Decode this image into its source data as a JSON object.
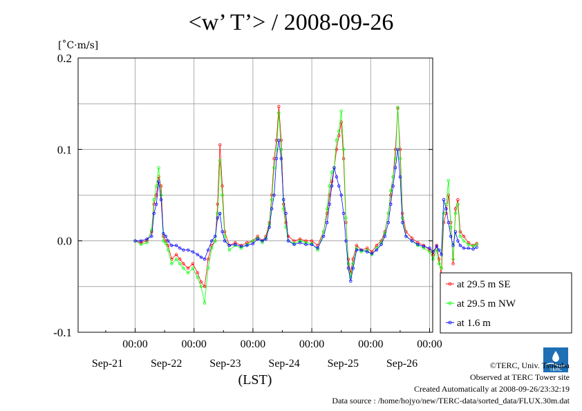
{
  "chart_data": {
    "type": "line",
    "title": "<w’ T’> / 2008-09-26",
    "ylabel": "[˚C·m/s]",
    "xlabel": "(LST)",
    "ylim": [
      -0.1,
      0.2
    ],
    "yticks": [
      "-0.1",
      "0.0",
      "0.1",
      "0.2"
    ],
    "xlim": [
      0,
      6
    ],
    "xticks": [
      {
        "time": "00:00",
        "date": "Sep-21"
      },
      {
        "time": "00:00",
        "date": "Sep-22"
      },
      {
        "time": "00:00",
        "date": "Sep-23"
      },
      {
        "time": "00:00",
        "date": "Sep-24"
      },
      {
        "time": "00:00",
        "date": "Sep-25"
      },
      {
        "time": "00:00",
        "date": "Sep-26"
      }
    ],
    "grid": true,
    "legend_position": "right",
    "series": [
      {
        "name": "at 29.5 m SE",
        "color": "#ff0000",
        "points": [
          [
            0,
            0.0
          ],
          [
            0.1,
            -0.002
          ],
          [
            0.2,
            0.0
          ],
          [
            0.28,
            0.01
          ],
          [
            0.32,
            0.04
          ],
          [
            0.36,
            0.05
          ],
          [
            0.4,
            0.07
          ],
          [
            0.44,
            0.06
          ],
          [
            0.48,
            0.005
          ],
          [
            0.52,
            0.0
          ],
          [
            0.56,
            -0.005
          ],
          [
            0.62,
            -0.02
          ],
          [
            0.7,
            -0.015
          ],
          [
            0.76,
            -0.02
          ],
          [
            0.82,
            -0.025
          ],
          [
            0.9,
            -0.03
          ],
          [
            0.98,
            -0.025
          ],
          [
            1.06,
            -0.035
          ],
          [
            1.12,
            -0.045
          ],
          [
            1.18,
            -0.05
          ],
          [
            1.24,
            -0.02
          ],
          [
            1.3,
            -0.005
          ],
          [
            1.36,
            0.0
          ],
          [
            1.4,
            0.04
          ],
          [
            1.44,
            0.105
          ],
          [
            1.48,
            0.06
          ],
          [
            1.52,
            0.01
          ],
          [
            1.6,
            -0.005
          ],
          [
            1.7,
            -0.002
          ],
          [
            1.8,
            -0.005
          ],
          [
            1.9,
            -0.002
          ],
          [
            2.0,
            0.0
          ],
          [
            2.08,
            0.005
          ],
          [
            2.16,
            0.0
          ],
          [
            2.22,
            0.005
          ],
          [
            2.28,
            0.02
          ],
          [
            2.32,
            0.05
          ],
          [
            2.36,
            0.09
          ],
          [
            2.4,
            0.11
          ],
          [
            2.44,
            0.147
          ],
          [
            2.48,
            0.11
          ],
          [
            2.52,
            0.04
          ],
          [
            2.56,
            0.02
          ],
          [
            2.6,
            0.005
          ],
          [
            2.7,
            0.0
          ],
          [
            2.8,
            0.002
          ],
          [
            2.9,
            0.0
          ],
          [
            3.0,
            0.0
          ],
          [
            3.1,
            -0.005
          ],
          [
            3.2,
            0.01
          ],
          [
            3.26,
            0.03
          ],
          [
            3.3,
            0.05
          ],
          [
            3.34,
            0.065
          ],
          [
            3.38,
            0.08
          ],
          [
            3.42,
            0.1
          ],
          [
            3.46,
            0.115
          ],
          [
            3.5,
            0.13
          ],
          [
            3.54,
            0.09
          ],
          [
            3.58,
            0.02
          ],
          [
            3.62,
            -0.02
          ],
          [
            3.66,
            -0.035
          ],
          [
            3.7,
            -0.02
          ],
          [
            3.76,
            -0.005
          ],
          [
            3.84,
            -0.01
          ],
          [
            3.94,
            -0.008
          ],
          [
            4.02,
            -0.012
          ],
          [
            4.1,
            -0.005
          ],
          [
            4.18,
            0.0
          ],
          [
            4.24,
            0.01
          ],
          [
            4.3,
            0.03
          ],
          [
            4.34,
            0.05
          ],
          [
            4.38,
            0.07
          ],
          [
            4.42,
            0.1
          ],
          [
            4.46,
            0.145
          ],
          [
            4.5,
            0.1
          ],
          [
            4.54,
            0.03
          ],
          [
            4.6,
            0.01
          ],
          [
            4.7,
            0.003
          ],
          [
            4.8,
            -0.002
          ],
          [
            4.9,
            -0.005
          ],
          [
            5.0,
            -0.01
          ],
          [
            5.06,
            -0.015
          ],
          [
            5.12,
            -0.005
          ],
          [
            5.16,
            -0.02
          ],
          [
            5.2,
            -0.038
          ],
          [
            5.24,
            0.02
          ],
          [
            5.28,
            0.03
          ],
          [
            5.32,
            0.05
          ],
          [
            5.36,
            0.02
          ],
          [
            5.4,
            -0.025
          ],
          [
            5.44,
            0.035
          ],
          [
            5.48,
            0.045
          ],
          [
            5.52,
            0.01
          ],
          [
            5.58,
            0.005
          ],
          [
            5.66,
            -0.002
          ],
          [
            5.74,
            -0.005
          ],
          [
            5.8,
            -0.003
          ]
        ]
      },
      {
        "name": "at 29.5 m NW",
        "color": "#00ff00",
        "points": [
          [
            0,
            0.0
          ],
          [
            0.1,
            -0.004
          ],
          [
            0.2,
            -0.002
          ],
          [
            0.28,
            0.012
          ],
          [
            0.32,
            0.045
          ],
          [
            0.36,
            0.06
          ],
          [
            0.4,
            0.08
          ],
          [
            0.44,
            0.05
          ],
          [
            0.48,
            0.0
          ],
          [
            0.52,
            -0.003
          ],
          [
            0.56,
            -0.01
          ],
          [
            0.62,
            -0.025
          ],
          [
            0.7,
            -0.02
          ],
          [
            0.76,
            -0.025
          ],
          [
            0.82,
            -0.03
          ],
          [
            0.9,
            -0.035
          ],
          [
            0.98,
            -0.03
          ],
          [
            1.06,
            -0.04
          ],
          [
            1.12,
            -0.05
          ],
          [
            1.18,
            -0.068
          ],
          [
            1.24,
            -0.03
          ],
          [
            1.3,
            -0.008
          ],
          [
            1.36,
            0.0
          ],
          [
            1.4,
            0.03
          ],
          [
            1.44,
            0.088
          ],
          [
            1.48,
            0.05
          ],
          [
            1.52,
            0.005
          ],
          [
            1.6,
            -0.01
          ],
          [
            1.7,
            -0.005
          ],
          [
            1.8,
            -0.008
          ],
          [
            1.9,
            -0.004
          ],
          [
            2.0,
            0.0
          ],
          [
            2.08,
            0.003
          ],
          [
            2.16,
            -0.002
          ],
          [
            2.22,
            0.003
          ],
          [
            2.28,
            0.018
          ],
          [
            2.32,
            0.045
          ],
          [
            2.36,
            0.08
          ],
          [
            2.4,
            0.1
          ],
          [
            2.44,
            0.14
          ],
          [
            2.48,
            0.1
          ],
          [
            2.52,
            0.035
          ],
          [
            2.56,
            0.015
          ],
          [
            2.6,
            0.0
          ],
          [
            2.7,
            -0.003
          ],
          [
            2.8,
            0.0
          ],
          [
            2.9,
            -0.002
          ],
          [
            3.0,
            -0.003
          ],
          [
            3.1,
            -0.01
          ],
          [
            3.2,
            0.01
          ],
          [
            3.26,
            0.035
          ],
          [
            3.3,
            0.06
          ],
          [
            3.34,
            0.075
          ],
          [
            3.38,
            0.08
          ],
          [
            3.42,
            0.11
          ],
          [
            3.46,
            0.12
          ],
          [
            3.5,
            0.142
          ],
          [
            3.54,
            0.1
          ],
          [
            3.58,
            0.025
          ],
          [
            3.62,
            -0.025
          ],
          [
            3.66,
            -0.04
          ],
          [
            3.7,
            -0.025
          ],
          [
            3.76,
            -0.008
          ],
          [
            3.84,
            -0.012
          ],
          [
            3.94,
            -0.01
          ],
          [
            4.02,
            -0.015
          ],
          [
            4.1,
            -0.008
          ],
          [
            4.18,
            -0.002
          ],
          [
            4.24,
            0.008
          ],
          [
            4.3,
            0.03
          ],
          [
            4.34,
            0.055
          ],
          [
            4.38,
            0.07
          ],
          [
            4.42,
            0.09
          ],
          [
            4.46,
            0.146
          ],
          [
            4.5,
            0.09
          ],
          [
            4.54,
            0.025
          ],
          [
            4.6,
            0.005
          ],
          [
            4.7,
            0.0
          ],
          [
            4.8,
            -0.005
          ],
          [
            4.9,
            -0.008
          ],
          [
            5.0,
            -0.012
          ],
          [
            5.06,
            -0.02
          ],
          [
            5.12,
            -0.01
          ],
          [
            5.16,
            -0.025
          ],
          [
            5.2,
            -0.03
          ],
          [
            5.24,
            0.03
          ],
          [
            5.28,
            0.04
          ],
          [
            5.32,
            0.066
          ],
          [
            5.36,
            0.015
          ],
          [
            5.4,
            -0.02
          ],
          [
            5.44,
            0.03
          ],
          [
            5.48,
            0.04
          ],
          [
            5.52,
            0.005
          ],
          [
            5.58,
            0.0
          ],
          [
            5.66,
            -0.004
          ],
          [
            5.74,
            -0.006
          ],
          [
            5.8,
            -0.004
          ]
        ]
      },
      {
        "name": "at 1.6 m",
        "color": "#0000ff",
        "points": [
          [
            0,
            0.0
          ],
          [
            0.1,
            0.0
          ],
          [
            0.2,
            0.002
          ],
          [
            0.28,
            0.005
          ],
          [
            0.32,
            0.03
          ],
          [
            0.36,
            0.04
          ],
          [
            0.4,
            0.065
          ],
          [
            0.44,
            0.045
          ],
          [
            0.48,
            0.008
          ],
          [
            0.52,
            0.005
          ],
          [
            0.56,
            0.0
          ],
          [
            0.62,
            -0.005
          ],
          [
            0.7,
            -0.005
          ],
          [
            0.76,
            -0.008
          ],
          [
            0.82,
            -0.01
          ],
          [
            0.9,
            -0.01
          ],
          [
            0.98,
            -0.012
          ],
          [
            1.06,
            -0.015
          ],
          [
            1.12,
            -0.018
          ],
          [
            1.18,
            -0.02
          ],
          [
            1.24,
            -0.01
          ],
          [
            1.3,
            0.0
          ],
          [
            1.36,
            0.005
          ],
          [
            1.4,
            0.025
          ],
          [
            1.44,
            0.03
          ],
          [
            1.48,
            0.01
          ],
          [
            1.52,
            0.0
          ],
          [
            1.6,
            -0.005
          ],
          [
            1.7,
            -0.004
          ],
          [
            1.8,
            -0.006
          ],
          [
            1.9,
            -0.005
          ],
          [
            2.0,
            -0.003
          ],
          [
            2.08,
            0.002
          ],
          [
            2.16,
            0.0
          ],
          [
            2.22,
            0.002
          ],
          [
            2.28,
            0.015
          ],
          [
            2.32,
            0.035
          ],
          [
            2.36,
            0.05
          ],
          [
            2.4,
            0.09
          ],
          [
            2.44,
            0.11
          ],
          [
            2.48,
            0.09
          ],
          [
            2.52,
            0.045
          ],
          [
            2.56,
            0.03
          ],
          [
            2.6,
            0.0
          ],
          [
            2.7,
            -0.004
          ],
          [
            2.8,
            -0.002
          ],
          [
            2.9,
            -0.004
          ],
          [
            3.0,
            -0.004
          ],
          [
            3.1,
            -0.008
          ],
          [
            3.2,
            0.005
          ],
          [
            3.26,
            0.02
          ],
          [
            3.3,
            0.04
          ],
          [
            3.34,
            0.06
          ],
          [
            3.38,
            0.08
          ],
          [
            3.42,
            0.07
          ],
          [
            3.46,
            0.06
          ],
          [
            3.5,
            0.05
          ],
          [
            3.54,
            0.03
          ],
          [
            3.58,
            0.0
          ],
          [
            3.62,
            -0.03
          ],
          [
            3.66,
            -0.044
          ],
          [
            3.7,
            -0.03
          ],
          [
            3.76,
            -0.01
          ],
          [
            3.84,
            -0.01
          ],
          [
            3.94,
            -0.012
          ],
          [
            4.02,
            -0.014
          ],
          [
            4.1,
            -0.01
          ],
          [
            4.18,
            -0.004
          ],
          [
            4.24,
            0.005
          ],
          [
            4.3,
            0.02
          ],
          [
            4.34,
            0.04
          ],
          [
            4.38,
            0.06
          ],
          [
            4.42,
            0.08
          ],
          [
            4.46,
            0.1
          ],
          [
            4.5,
            0.07
          ],
          [
            4.54,
            0.02
          ],
          [
            4.6,
            0.005
          ],
          [
            4.7,
            0.0
          ],
          [
            4.8,
            -0.004
          ],
          [
            4.9,
            -0.006
          ],
          [
            5.0,
            -0.008
          ],
          [
            5.06,
            -0.012
          ],
          [
            5.12,
            -0.006
          ],
          [
            5.16,
            -0.01
          ],
          [
            5.2,
            -0.015
          ],
          [
            5.24,
            0.045
          ],
          [
            5.28,
            0.035
          ],
          [
            5.32,
            0.02
          ],
          [
            5.36,
            0.005
          ],
          [
            5.4,
            -0.005
          ],
          [
            5.44,
            0.01
          ],
          [
            5.48,
            0.0
          ],
          [
            5.52,
            -0.005
          ],
          [
            5.58,
            -0.008
          ],
          [
            5.66,
            -0.008
          ],
          [
            5.74,
            -0.009
          ],
          [
            5.8,
            -0.007
          ]
        ]
      }
    ]
  },
  "credits": {
    "copyright": "©TERC, Univ. Tsukuba",
    "site": "Observed at TERC Tower site",
    "created": "Created Automatically at 2008-09-26/23:32:19",
    "source": "Data source : /home/hojyo/new/TERC-data/sorted_data/FLUX.30m.dat"
  },
  "logo": {
    "text": "TERC",
    "color": "#1f6fb5"
  }
}
